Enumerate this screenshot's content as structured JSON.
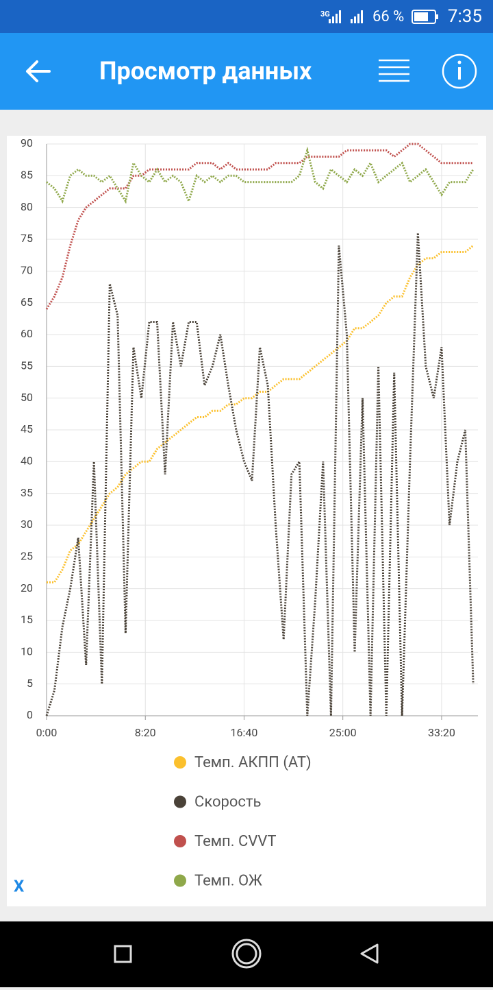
{
  "status_bar": {
    "network": "3G",
    "battery": "66 %",
    "time": "7:35"
  },
  "app_bar": {
    "title": "Просмотр данных"
  },
  "chart_data": {
    "type": "line",
    "x": [
      0,
      40,
      80,
      120,
      160,
      200,
      240,
      280,
      320,
      360,
      400,
      440,
      480,
      520,
      560,
      600,
      640,
      680,
      720,
      760,
      800,
      840,
      880,
      920,
      960,
      1000,
      1040,
      1080,
      1120,
      1160,
      1200,
      1240,
      1280,
      1320,
      1360,
      1400,
      1440,
      1480,
      1520,
      1560,
      1600,
      1640,
      1680,
      1720,
      1760,
      1800,
      1840,
      1880,
      1920,
      1960,
      2000,
      2040,
      2080,
      2120,
      2160
    ],
    "series": [
      {
        "name": "Темп. АКПП (AT)",
        "color": "#fbc02d",
        "values": [
          21,
          21,
          23,
          26,
          27,
          29,
          31,
          33,
          35,
          36,
          38,
          39,
          40,
          40,
          42,
          43,
          44,
          45,
          46,
          47,
          47,
          48,
          48,
          49,
          49,
          50,
          50,
          51,
          51,
          52,
          53,
          53,
          53,
          54,
          55,
          56,
          57,
          58,
          59,
          61,
          61,
          62,
          63,
          65,
          66,
          66,
          69,
          71,
          72,
          72,
          73,
          73,
          73,
          73,
          74
        ]
      },
      {
        "name": "Скорость",
        "color": "#4a4238",
        "values": [
          0,
          4,
          14,
          20,
          28,
          8,
          40,
          5,
          68,
          63,
          13,
          58,
          50,
          62,
          62,
          38,
          62,
          55,
          62,
          62,
          52,
          55,
          60,
          52,
          45,
          40,
          37,
          58,
          52,
          30,
          12,
          38,
          40,
          0,
          18,
          40,
          0,
          74,
          60,
          10,
          50,
          0,
          55,
          0,
          54,
          0,
          40,
          76,
          55,
          50,
          58,
          30,
          40,
          45,
          5
        ]
      },
      {
        "name": "Темп. CVVT",
        "color": "#c0504d",
        "values": [
          64,
          66,
          69,
          74,
          78,
          80,
          81,
          82,
          83,
          83,
          83,
          85,
          85,
          86,
          86,
          86,
          86,
          86,
          86,
          87,
          87,
          87,
          86,
          87,
          86,
          86,
          86,
          86,
          86,
          87,
          87,
          87,
          87,
          88,
          88,
          88,
          88,
          88,
          89,
          89,
          89,
          89,
          89,
          89,
          88,
          89,
          90,
          90,
          89,
          88,
          87,
          87,
          87,
          87,
          87
        ]
      },
      {
        "name": "Темп. ОЖ",
        "color": "#8fa84a",
        "values": [
          84,
          83,
          81,
          85,
          86,
          85,
          85,
          84,
          85,
          83,
          81,
          87,
          85,
          84,
          86,
          84,
          85,
          84,
          81,
          85,
          84,
          85,
          84,
          85,
          85,
          84,
          84,
          84,
          84,
          84,
          84,
          84,
          85,
          89,
          84,
          83,
          86,
          85,
          84,
          86,
          85,
          87,
          84,
          85,
          86,
          87,
          84,
          85,
          86,
          84,
          82,
          84,
          84,
          84,
          86
        ]
      }
    ],
    "xlim": [
      0,
      2184
    ],
    "xticks": [
      {
        "value": 0,
        "label": "0:00"
      },
      {
        "value": 500,
        "label": "8:20"
      },
      {
        "value": 1000,
        "label": "16:40"
      },
      {
        "value": 1500,
        "label": "25:00"
      },
      {
        "value": 2000,
        "label": "33:20"
      }
    ],
    "ylim": [
      0,
      90
    ],
    "yticks": [
      0,
      5,
      10,
      15,
      20,
      25,
      30,
      35,
      40,
      45,
      50,
      55,
      60,
      65,
      70,
      75,
      80,
      85,
      90
    ],
    "grid": true
  },
  "close_button": {
    "label": "X"
  }
}
